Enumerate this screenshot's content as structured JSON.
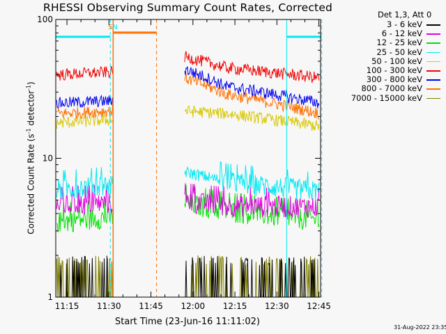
{
  "chart_data": {
    "type": "line",
    "title": "RHESSI Observing Summary Count Rates, Corrected",
    "xlabel": "Start Time (23-Jun-16 11:11:02)",
    "ylabel_main": "Corrected Count Rate (s",
    "ylabel_sup1": "-1",
    "ylabel_mid": " detector",
    "ylabel_sup2": "-1",
    "ylabel_end": ")",
    "yscale": "log",
    "ylim": [
      1,
      100
    ],
    "y_ticks": [
      {
        "value": 1,
        "label": "1"
      },
      {
        "value": 10,
        "label": "10"
      },
      {
        "value": 100,
        "label": "100"
      }
    ],
    "x_range_minutes": [
      11.0,
      50.6
    ],
    "x_ticks": [
      {
        "minutes": 15,
        "label": "11:15"
      },
      {
        "minutes": 30,
        "label": "11:30"
      },
      {
        "minutes": 45,
        "label": "11:45"
      },
      {
        "minutes": 60,
        "label": "12:00"
      },
      {
        "minutes": 75,
        "label": "12:15"
      },
      {
        "minutes": 90,
        "label": "12:30"
      },
      {
        "minutes": 105,
        "label": "12:45"
      }
    ],
    "legend_title": "Det 1,3, Att 0",
    "legend_position": "right",
    "series": [
      {
        "name": "3 - 6 keV",
        "color": "#000000",
        "base": [
          1.6,
          1.7,
          1.8,
          1.7,
          1.6
        ]
      },
      {
        "name": "6 - 12 keV",
        "color": "#e000e0",
        "base": [
          4.6,
          4.8,
          4.9,
          4.6,
          4.5
        ]
      },
      {
        "name": "12 - 25 keV",
        "color": "#00e000",
        "base": [
          3.5,
          3.8,
          4.8,
          4.2,
          3.6
        ]
      },
      {
        "name": "25 - 50 keV",
        "color": "#00e8f0",
        "base": [
          6.0,
          6.5,
          8.0,
          6.8,
          5.8
        ]
      },
      {
        "name": "50 - 100 keV",
        "color": "#d8c800",
        "base": [
          18,
          19,
          22,
          21,
          17
        ]
      },
      {
        "name": "100 - 300 keV",
        "color": "#f00000",
        "base": [
          40,
          42,
          54,
          45,
          38
        ]
      },
      {
        "name": "300 - 800 keV",
        "color": "#0000f0",
        "base": [
          25,
          26,
          44,
          33,
          25
        ]
      },
      {
        "name": "800 - 7000 keV",
        "color": "#ff7000",
        "base": [
          21,
          22,
          38,
          29,
          21
        ]
      },
      {
        "name": "7000 - 15000 keV",
        "color": "#808000",
        "base": [
          1.5,
          1.5,
          1.6,
          1.6,
          1.5
        ]
      }
    ],
    "series_note_x_minutes": [
      11.5,
      31.0,
      57.0,
      72.0,
      105.5
    ],
    "data_gaps_minutes": [
      [
        31.5,
        57.0
      ]
    ],
    "attenuator_flags": [
      {
        "label": "S",
        "minutes": 30.5
      },
      {
        "label": "N",
        "minutes": 32.0
      }
    ],
    "night_bars_y": 75,
    "night_intervals_minutes": [
      [
        11.0,
        30.5
      ],
      [
        93.5,
        106.0
      ]
    ],
    "saa_interval_minutes": [
      31.5,
      47.0
    ],
    "colors": {
      "night": "#00e8f0",
      "saa": "#ff7000",
      "background": "#f7f7f7"
    }
  },
  "footer": {
    "timestamp": "31-Aug-2022 23:35"
  }
}
